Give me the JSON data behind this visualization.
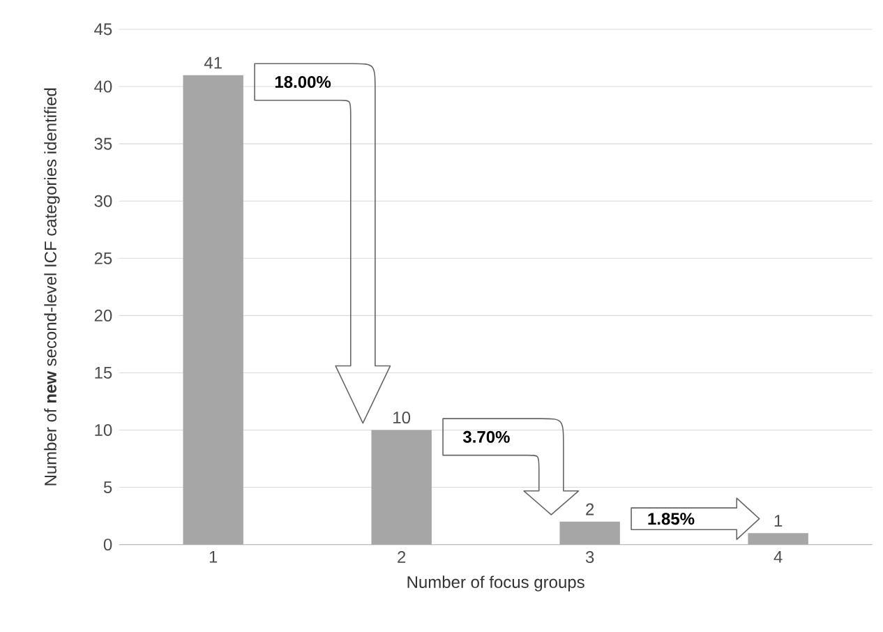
{
  "chart_data": {
    "type": "bar",
    "xlabel": "Number of focus groups",
    "ylabel": "Number of **new** second-level ICF categories identified",
    "categories": [
      "1",
      "2",
      "3",
      "4"
    ],
    "values": [
      41,
      10,
      2,
      1
    ],
    "color": "#a6a6a6",
    "ylim": [
      0,
      45
    ],
    "yticks": [
      0,
      5,
      10,
      15,
      20,
      25,
      30,
      35,
      40,
      45
    ],
    "grid": "y",
    "data_labels": true,
    "annotations": [
      "18.00%",
      "3.70%",
      "1.85%"
    ]
  }
}
